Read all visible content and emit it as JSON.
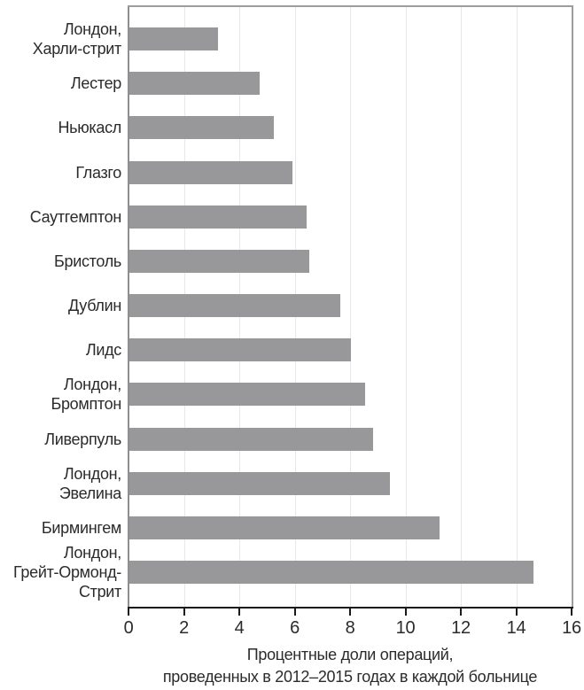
{
  "chart_data": {
    "type": "bar",
    "orientation": "horizontal",
    "title": "",
    "categories": [
      [
        "Лондон,",
        "Харли-стрит"
      ],
      [
        "Лестер"
      ],
      [
        "Ньюкасл"
      ],
      [
        "Глазго"
      ],
      [
        "Саутгемптон"
      ],
      [
        "Бристоль"
      ],
      [
        "Дублин"
      ],
      [
        "Лидс"
      ],
      [
        "Лондон,",
        "Бромптон"
      ],
      [
        "Ливерпуль"
      ],
      [
        "Лондон,",
        "Эвелина"
      ],
      [
        "Бирмингем"
      ],
      [
        "Лондон,",
        "Грейт-Ормонд-",
        "Стрит"
      ]
    ],
    "values": [
      3.2,
      4.7,
      5.2,
      5.9,
      6.4,
      6.5,
      7.6,
      8.0,
      8.5,
      8.8,
      9.4,
      11.2,
      14.6
    ],
    "unit": "percent",
    "xlabel_lines": [
      "Процентные доли операций,",
      "проведенных в 2012–2015 годах в каждой больнице"
    ],
    "xlim": [
      0,
      16
    ],
    "xticks": [
      0,
      2,
      4,
      6,
      8,
      10,
      12,
      14,
      16
    ],
    "grid": "vertical-at-even-ticks",
    "legend": "none",
    "colors": {
      "bar": "#98989b",
      "grid": "#e8e8e8",
      "frame": "#9d9d9d",
      "axis": "#1a1a1a",
      "text": "#2b2b2b"
    }
  }
}
